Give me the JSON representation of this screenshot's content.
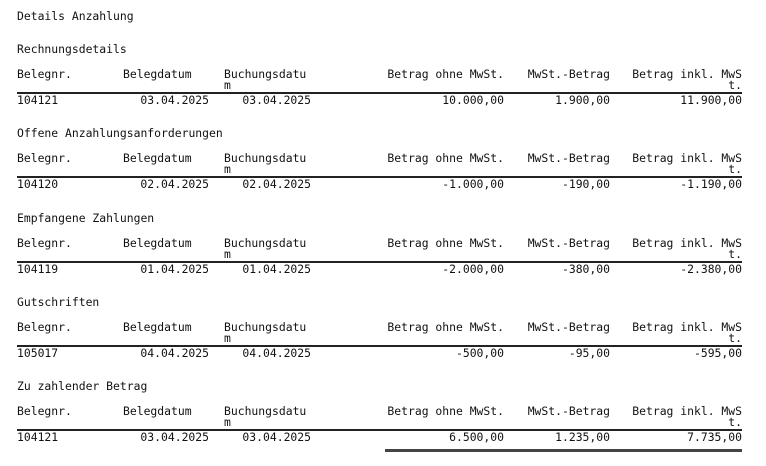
{
  "title": "Details Anzahlung",
  "columns": [
    "Belegnr.",
    "Belegdatum",
    "Buchungsdatum",
    "Betrag ohne MwSt.",
    "MwSt.-Betrag",
    "Betrag inkl. MwSt."
  ],
  "sections": [
    {
      "title": "Rechnungsdetails",
      "row": [
        "104121",
        "03.04.2025",
        "03.04.2025",
        "10.000,00",
        "1.900,00",
        "11.900,00"
      ]
    },
    {
      "title": "Offene Anzahlungsanforderungen",
      "row": [
        "104120",
        "02.04.2025",
        "02.04.2025",
        "-1.000,00",
        "-190,00",
        "-1.190,00"
      ]
    },
    {
      "title": "Empfangene Zahlungen",
      "row": [
        "104119",
        "01.04.2025",
        "01.04.2025",
        "-2.000,00",
        "-380,00",
        "-2.380,00"
      ]
    },
    {
      "title": "Gutschriften",
      "row": [
        "105017",
        "04.04.2025",
        "04.04.2025",
        "-500,00",
        "-95,00",
        "-595,00"
      ]
    },
    {
      "title": "Zu zahlender Betrag",
      "row": [
        "104121",
        "03.04.2025",
        "03.04.2025",
        "6.500,00",
        "1.235,00",
        "7.735,00"
      ],
      "total": true
    }
  ]
}
